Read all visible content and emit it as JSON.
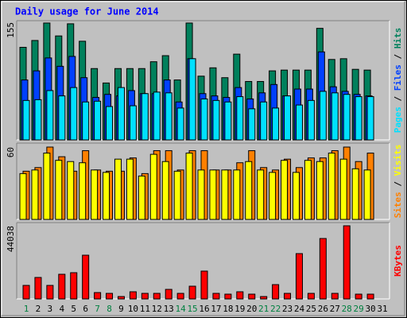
{
  "chart_data": {
    "type": "bar",
    "title": "Daily usage for June 2014",
    "legend_separator": " / ",
    "categories": [
      "1",
      "2",
      "3",
      "4",
      "5",
      "6",
      "7",
      "8",
      "9",
      "10",
      "11",
      "12",
      "13",
      "14",
      "15",
      "16",
      "17",
      "18",
      "19",
      "20",
      "21",
      "22",
      "23",
      "24",
      "25",
      "26",
      "27",
      "28",
      "29",
      "30",
      "31"
    ],
    "category_colors": [
      "#008040",
      "#000000",
      "#000000",
      "#000000",
      "#000000",
      "#000000",
      "#008040",
      "#008040",
      "#000000",
      "#000000",
      "#000000",
      "#000000",
      "#000000",
      "#008040",
      "#008040",
      "#000000",
      "#000000",
      "#000000",
      "#000000",
      "#000000",
      "#008040",
      "#008040",
      "#000000",
      "#000000",
      "#000000",
      "#000000",
      "#000000",
      "#008040",
      "#008040",
      "#000000",
      "#000000"
    ],
    "panels": [
      {
        "ylim": [
          0,
          155
        ],
        "yticks": [
          155
        ],
        "series": [
          {
            "name": "Pages",
            "color": "#00e0ff",
            "values": [
              52,
              53,
              65,
              58,
              69,
              50,
              51,
              44,
              69,
              45,
              61,
              63,
              62,
              42,
              107,
              54,
              52,
              50,
              57,
              41,
              50,
              42,
              58,
              46,
              52,
              64,
              62,
              60,
              57,
              57,
              null
            ]
          },
          {
            "name": "Files",
            "color": "#0040ff",
            "values": [
              79,
              91,
              108,
              97,
              110,
              82,
              56,
              60,
              58,
              65,
              61,
              61,
              79,
              50,
              107,
              61,
              58,
              56,
              69,
              54,
              62,
              73,
              58,
              67,
              67,
              116,
              70,
              64,
              60,
              58,
              null
            ]
          },
          {
            "name": "Hits",
            "color": "#00805c",
            "values": [
              122,
              131,
              154,
              137,
              153,
              130,
              94,
              75,
              94,
              94,
              94,
              103,
              111,
              79,
              154,
              84,
              95,
              82,
              113,
              77,
              77,
              91,
              92,
              92,
              92,
              147,
              106,
              107,
              93,
              92,
              null
            ]
          }
        ]
      },
      {
        "ylim": [
          0,
          60
        ],
        "yticks": [
          60
        ],
        "series": [
          {
            "name": "Sites",
            "color": "#ff8000",
            "values": [
              40,
              43,
              60,
              52,
              40,
              57,
              41,
              40,
              40,
              51,
              38,
              57,
              57,
              41,
              57,
              57,
              41,
              41,
              47,
              57,
              43,
              41,
              50,
              43,
              51,
              51,
              57,
              60,
              48,
              55,
              null
            ]
          },
          {
            "name": "Visits",
            "color": "#ffff00",
            "values": [
              38,
              41,
              55,
              49,
              48,
              47,
              41,
              39,
              50,
              50,
              36,
              54,
              48,
              40,
              55,
              41,
              41,
              41,
              41,
              48,
              41,
              39,
              49,
              39,
              49,
              48,
              55,
              50,
              42,
              41,
              null
            ]
          }
        ]
      },
      {
        "ylim": [
          0,
          44038
        ],
        "yticks": [
          44038
        ],
        "series": [
          {
            "name": "KBytes",
            "color": "#ff0000",
            "values": [
              8138,
              12924,
              8138,
              14839,
              15797,
              26328,
              3830,
              3351,
              1436,
              4308,
              3351,
              3351,
              5744,
              3351,
              7659,
              16754,
              3351,
              2872,
              4308,
              2872,
              1436,
              8616,
              3351,
              27285,
              3351,
              36380,
              3351,
              44038,
              2872,
              2872,
              null
            ]
          }
        ]
      }
    ]
  }
}
